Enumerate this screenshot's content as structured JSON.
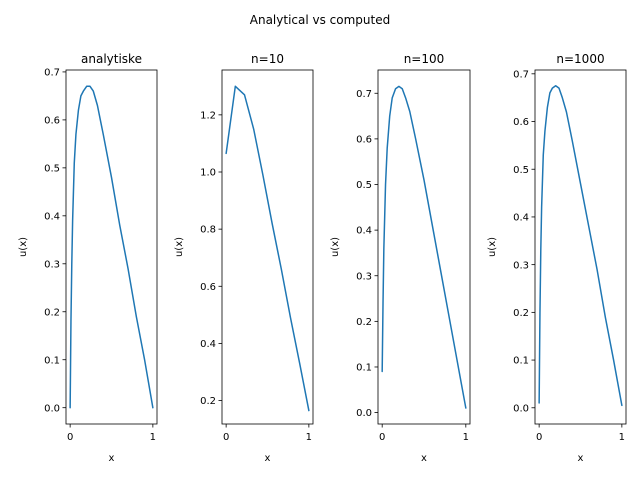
{
  "figure": {
    "suptitle": "Analytical vs computed",
    "line_color": "#1f77b4"
  },
  "chart_data": [
    {
      "type": "line",
      "title": "analytiske",
      "xlabel": "x",
      "ylabel": "u(x)",
      "xlim": [
        -0.05,
        1.05
      ],
      "ylim": [
        -0.034,
        0.704
      ],
      "xticks": [
        0,
        1
      ],
      "yticks": [
        0.0,
        0.1,
        0.2,
        0.3,
        0.4,
        0.5,
        0.6,
        0.7
      ],
      "ytick_labels": [
        "0.0",
        "0.1",
        "0.2",
        "0.3",
        "0.4",
        "0.5",
        "0.6",
        "0.7"
      ],
      "grid": false,
      "x": [
        0.0,
        0.01,
        0.02,
        0.03,
        0.05,
        0.07,
        0.1,
        0.13,
        0.16,
        0.2,
        0.24,
        0.28,
        0.33,
        0.4,
        0.5,
        0.6,
        0.7,
        0.8,
        0.9,
        1.0
      ],
      "y": [
        0.0,
        0.18,
        0.3,
        0.39,
        0.51,
        0.57,
        0.62,
        0.65,
        0.66,
        0.67,
        0.67,
        0.66,
        0.63,
        0.57,
        0.48,
        0.38,
        0.29,
        0.19,
        0.1,
        0.0
      ]
    },
    {
      "type": "line",
      "title": "n=10",
      "xlabel": "x",
      "ylabel": "u(x)",
      "xlim": [
        -0.05,
        1.05
      ],
      "ylim": [
        0.118,
        1.357
      ],
      "xticks": [
        0,
        1
      ],
      "yticks": [
        0.2,
        0.4,
        0.6,
        0.8,
        1.0,
        1.2
      ],
      "ytick_labels": [
        "0.2",
        "0.4",
        "0.6",
        "0.8",
        "1.0",
        "1.2"
      ],
      "grid": false,
      "x": [
        0.0,
        0.111,
        0.222,
        0.333,
        0.444,
        0.556,
        0.667,
        0.778,
        0.889,
        1.0
      ],
      "y": [
        1.065,
        1.3,
        1.27,
        1.15,
        0.99,
        0.82,
        0.66,
        0.49,
        0.33,
        0.165
      ]
    },
    {
      "type": "line",
      "title": "n=100",
      "xlabel": "x",
      "ylabel": "u(x)",
      "xlim": [
        -0.05,
        1.05
      ],
      "ylim": [
        -0.025,
        0.751
      ],
      "xticks": [
        0,
        1
      ],
      "yticks": [
        0.0,
        0.1,
        0.2,
        0.3,
        0.4,
        0.5,
        0.6,
        0.7
      ],
      "ytick_labels": [
        "0.0",
        "0.1",
        "0.2",
        "0.3",
        "0.4",
        "0.5",
        "0.6",
        "0.7"
      ],
      "grid": false,
      "x": [
        0.0,
        0.01,
        0.02,
        0.04,
        0.06,
        0.09,
        0.12,
        0.16,
        0.2,
        0.24,
        0.28,
        0.33,
        0.4,
        0.5,
        0.6,
        0.7,
        0.8,
        0.9,
        1.0
      ],
      "y": [
        0.09,
        0.24,
        0.36,
        0.5,
        0.58,
        0.65,
        0.69,
        0.71,
        0.715,
        0.71,
        0.69,
        0.66,
        0.6,
        0.51,
        0.41,
        0.31,
        0.21,
        0.11,
        0.01
      ]
    },
    {
      "type": "line",
      "title": "n=1000",
      "xlabel": "x",
      "ylabel": "u(x)",
      "xlim": [
        -0.05,
        1.05
      ],
      "ylim": [
        -0.034,
        0.708
      ],
      "xticks": [
        0,
        1
      ],
      "yticks": [
        0.0,
        0.1,
        0.2,
        0.3,
        0.4,
        0.5,
        0.6,
        0.7
      ],
      "ytick_labels": [
        "0.0",
        "0.1",
        "0.2",
        "0.3",
        "0.4",
        "0.5",
        "0.6",
        "0.7"
      ],
      "grid": false,
      "x": [
        0.0,
        0.01,
        0.02,
        0.03,
        0.05,
        0.07,
        0.1,
        0.13,
        0.16,
        0.2,
        0.24,
        0.28,
        0.33,
        0.4,
        0.5,
        0.6,
        0.7,
        0.8,
        0.9,
        1.0
      ],
      "y": [
        0.01,
        0.2,
        0.33,
        0.42,
        0.53,
        0.58,
        0.63,
        0.66,
        0.67,
        0.675,
        0.67,
        0.65,
        0.62,
        0.56,
        0.47,
        0.38,
        0.29,
        0.19,
        0.1,
        0.005
      ]
    }
  ]
}
